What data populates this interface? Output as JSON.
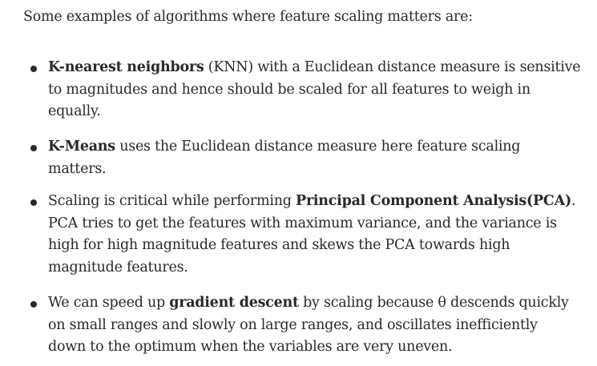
{
  "intro": "Some examples of algorithms where feature scaling matters are:",
  "items": [
    {
      "lines": [
        {
          "bold": "K-nearest neighbors",
          "rest": " (KNN) with a Euclidean distance measure is sensitive"
        },
        {
          "text": "to magnitudes and hence should be scaled for all features to weigh in"
        },
        {
          "text": "equally."
        }
      ]
    },
    {
      "lines": [
        {
          "bold": "K-Means",
          "rest": " uses the Euclidean distance measure here feature scaling"
        },
        {
          "text": "matters."
        }
      ]
    },
    {
      "lines": [
        {
          "pre": "Scaling is critical while performing ",
          "bold": "Principal Component Analysis(PCA)",
          "rest": "."
        },
        {
          "text": "PCA tries to get the features with maximum variance, and the variance is"
        },
        {
          "text": "high for high magnitude features and skews the PCA towards high"
        },
        {
          "text": "magnitude features."
        }
      ]
    },
    {
      "lines": [
        {
          "pre": "We can speed up ",
          "bold": "gradient descent",
          "rest": " by scaling because θ descends quickly"
        },
        {
          "text": "on small ranges and slowly on large ranges, and oscillates inefficiently"
        },
        {
          "text": "down to the optimum when the variables are very uneven."
        }
      ]
    }
  ]
}
